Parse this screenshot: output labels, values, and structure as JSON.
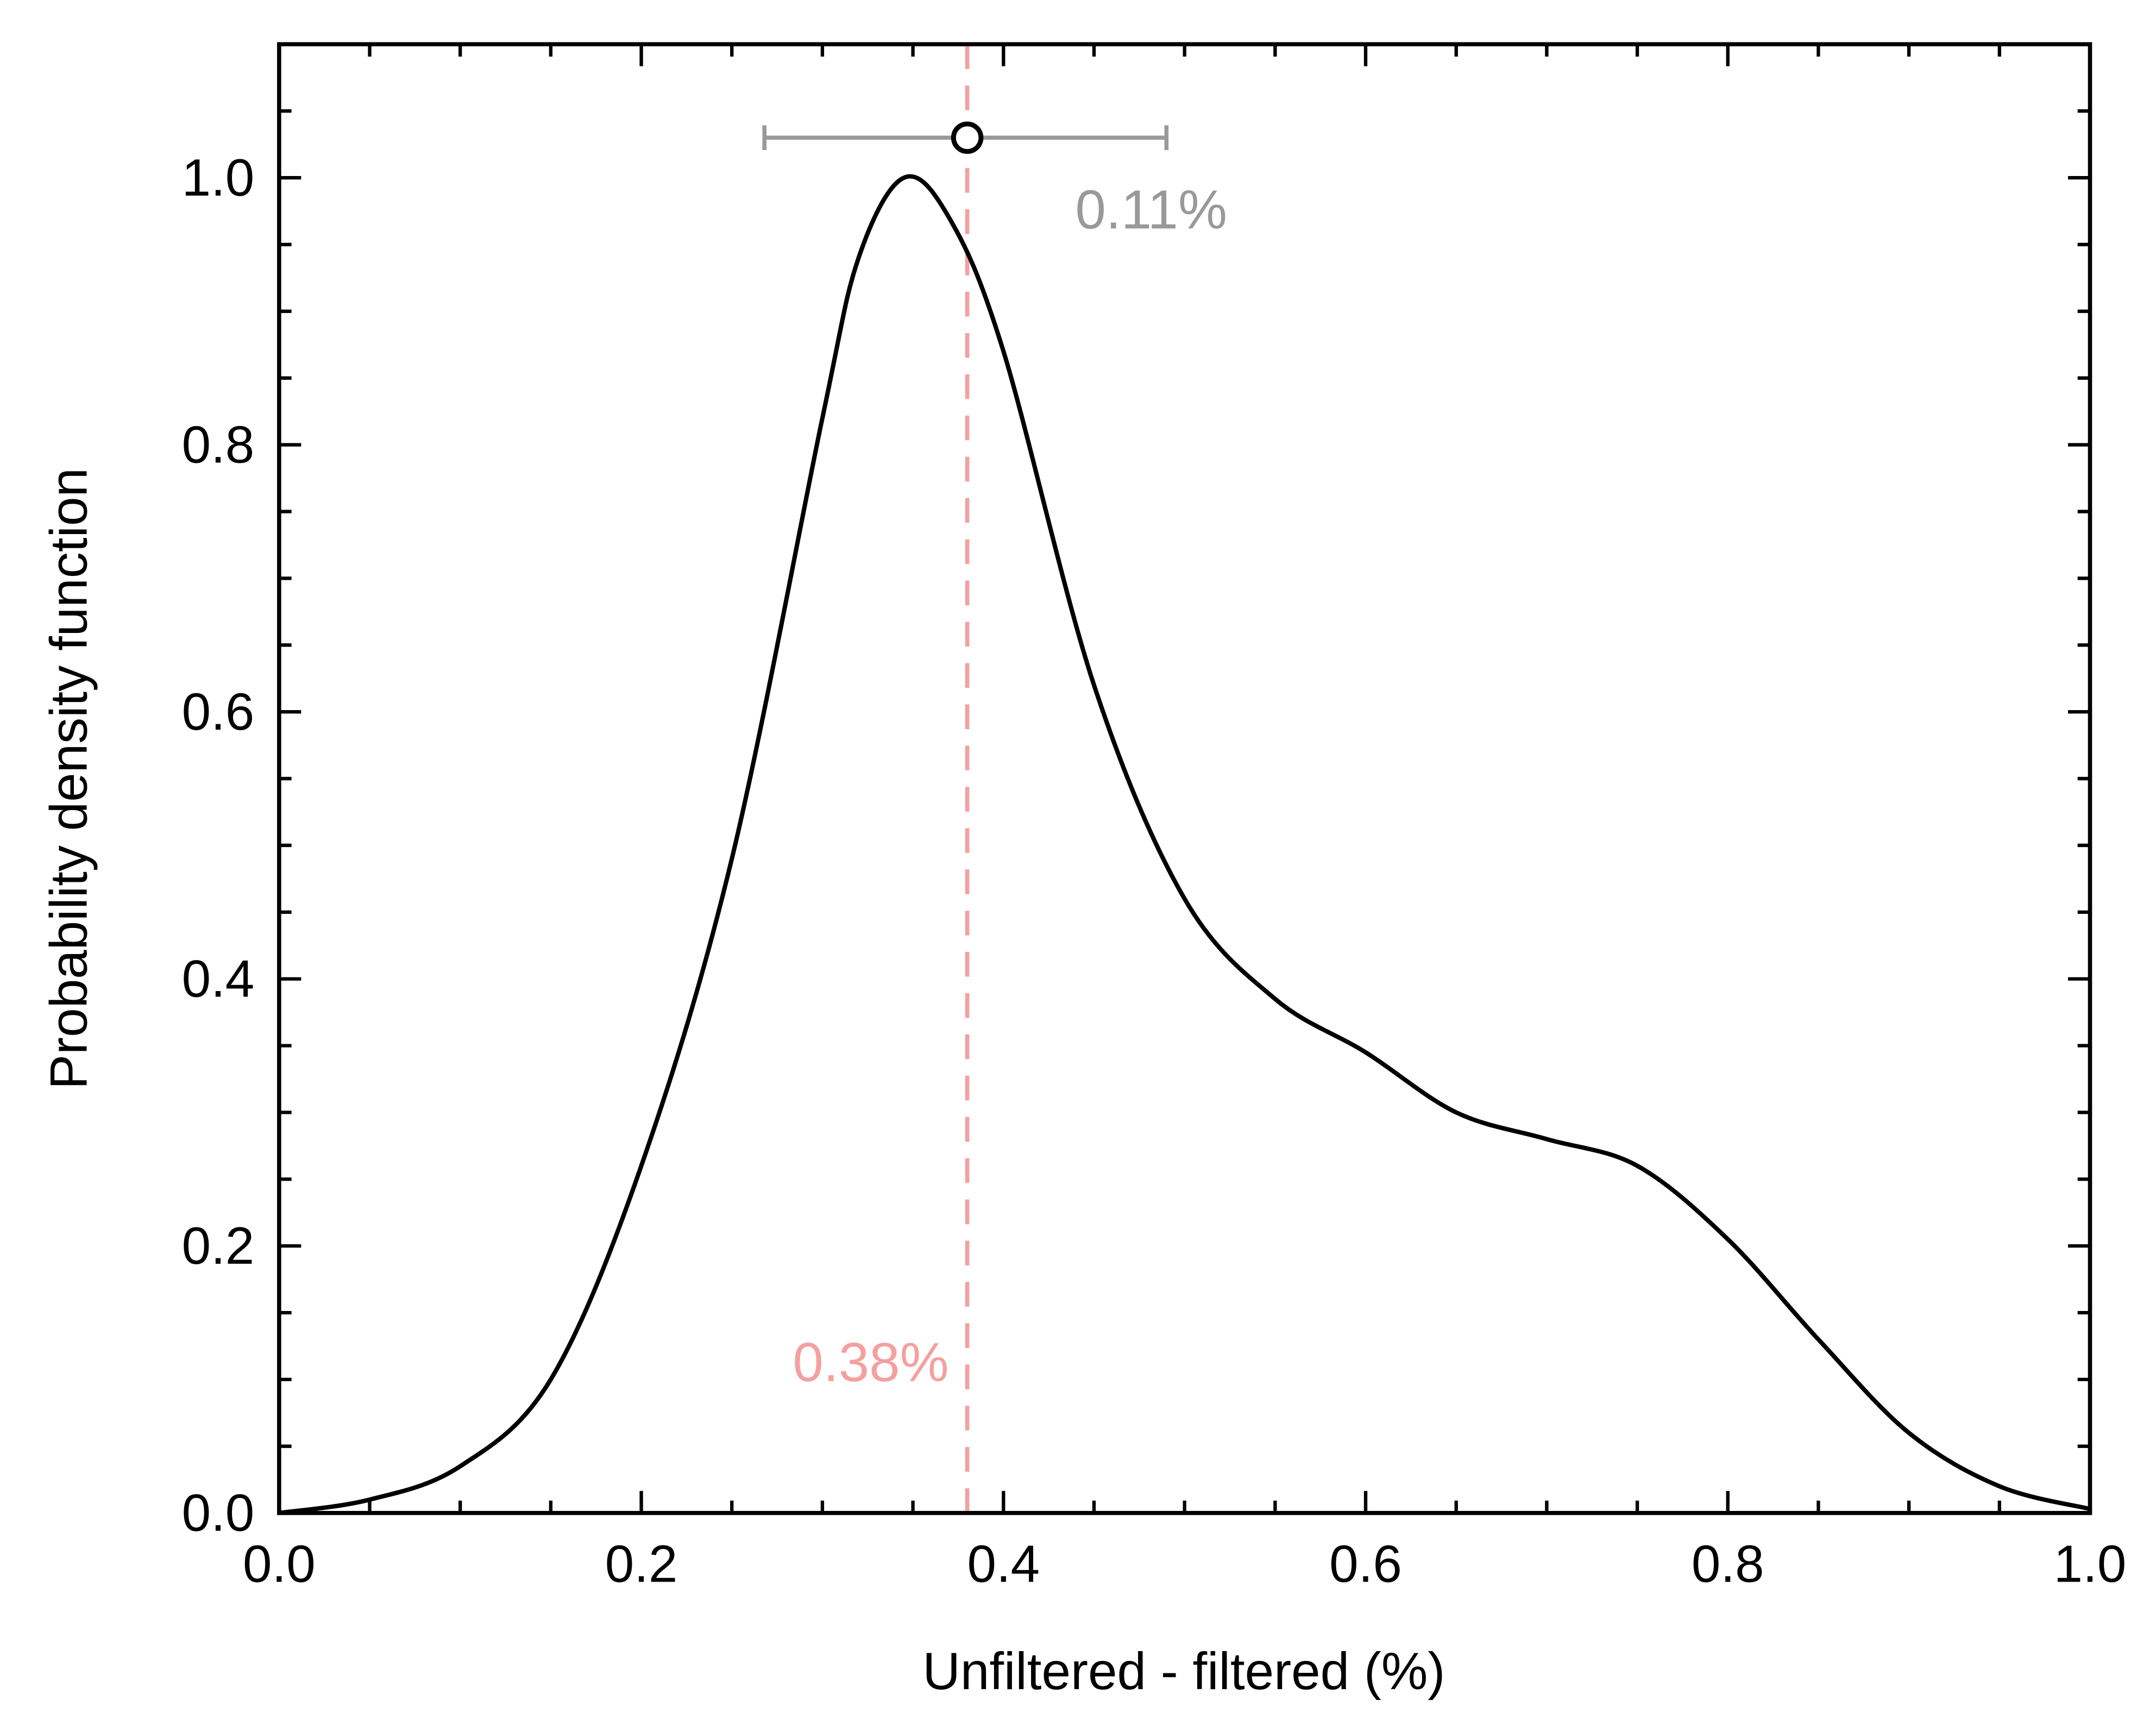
{
  "chart_data": {
    "type": "line",
    "title": "",
    "xlabel": "Unfiltered - filtered (%)",
    "ylabel": "Probability density function",
    "xlim": [
      0,
      1.0
    ],
    "ylim": [
      0,
      1.1
    ],
    "xticks": [
      "0.0",
      "0.2",
      "0.4",
      "0.6",
      "0.8",
      "1.0"
    ],
    "yticks": [
      "0.0",
      "0.2",
      "0.4",
      "0.6",
      "0.8",
      "1.0"
    ],
    "grid": false,
    "series": [
      {
        "name": "PDF",
        "color": "#000000",
        "x": [
          0,
          0.05,
          0.1,
          0.15,
          0.2,
          0.25,
          0.3,
          0.32,
          0.345,
          0.37,
          0.4,
          0.45,
          0.5,
          0.55,
          0.6,
          0.65,
          0.7,
          0.75,
          0.8,
          0.85,
          0.9,
          0.95,
          1.0
        ],
        "y": [
          0.0,
          0.01,
          0.035,
          0.1,
          0.26,
          0.49,
          0.82,
          0.94,
          1.0,
          0.97,
          0.87,
          0.62,
          0.46,
          0.385,
          0.345,
          0.3,
          0.28,
          0.26,
          0.205,
          0.13,
          0.06,
          0.02,
          0.003
        ]
      }
    ],
    "annotations": {
      "vline": {
        "x": 0.38,
        "color": "#f4a0a0",
        "label": "0.38%"
      },
      "errorbar": {
        "x": 0.38,
        "y": 1.03,
        "xerr_low": 0.268,
        "xerr_high": 0.49,
        "color": "#999999",
        "label": "0.11%"
      }
    }
  }
}
